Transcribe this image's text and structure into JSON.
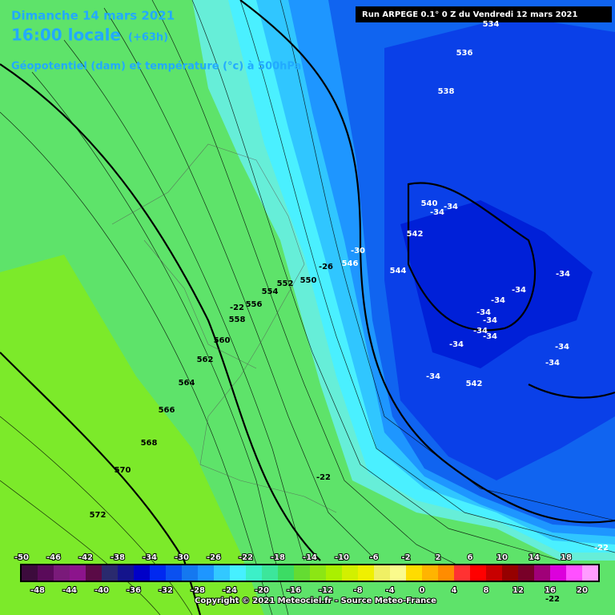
{
  "header": {
    "date": "Dimanche 14 mars 2021",
    "time": "16:00 locale",
    "lead": "(+63h)",
    "field": "Géopotentiel (dam) et température (°c) à 500hPa",
    "run": "Run ARPEGE 0.1° 0 Z du Vendredi 12 mars 2021"
  },
  "map": {
    "geopotential_labels": [
      534,
      536,
      538,
      540,
      542,
      544,
      546,
      550,
      552,
      554,
      556,
      558,
      560,
      562,
      564,
      566,
      568,
      570,
      572,
      542
    ],
    "temperature_labels": [
      -34,
      -34,
      -30,
      -26,
      -22,
      -22,
      -22,
      -34,
      -34,
      -34,
      -34,
      -34,
      -34,
      -34,
      -34,
      -34,
      -34,
      -34,
      -22
    ]
  },
  "legend": {
    "colors": [
      "#3c0b3c",
      "#5a0a5a",
      "#7a1a7a",
      "#8c148c",
      "#5a0a46",
      "#2a2a6e",
      "#14148c",
      "#0000c8",
      "#0028f0",
      "#0a50f0",
      "#1478f0",
      "#1e96ff",
      "#32c8ff",
      "#46f0ff",
      "#3cf0c8",
      "#3ce69b",
      "#3cdc64",
      "#64dc32",
      "#8ce614",
      "#aaf000",
      "#d2f000",
      "#f0f000",
      "#f0f064",
      "#fafa8c",
      "#ffdc00",
      "#ffb400",
      "#ff8c00",
      "#ff3232",
      "#ff0000",
      "#c80000",
      "#960000",
      "#780028",
      "#a00078",
      "#dc00dc",
      "#ff50ff",
      "#ff9cff"
    ],
    "top_labels": [
      -50,
      -46,
      -42,
      -38,
      -34,
      -30,
      -26,
      -22,
      -18,
      -14,
      -10,
      -6,
      -2,
      2,
      6,
      10,
      14,
      18
    ],
    "bottom_labels": [
      -48,
      -44,
      -40,
      -36,
      -32,
      -28,
      -24,
      -20,
      -16,
      -12,
      -8,
      -4,
      0,
      4,
      8,
      12,
      16,
      20
    ]
  },
  "footer": {
    "copyright": "Copyright © 2021 Meteociel.fr - Source Meteo-France"
  }
}
